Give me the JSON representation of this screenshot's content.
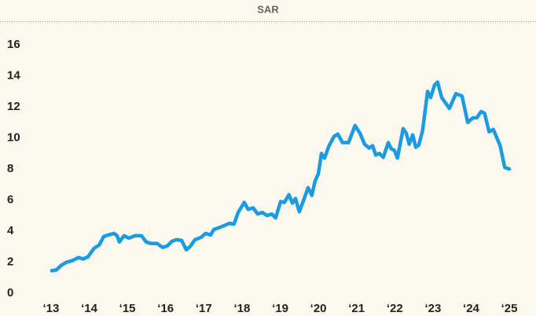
{
  "chart_data": {
    "type": "line",
    "title": "SAR",
    "x": [
      2013.02,
      2013.14,
      2013.27,
      2013.41,
      2013.56,
      2013.72,
      2013.84,
      2013.97,
      2014.13,
      2014.26,
      2014.38,
      2014.5,
      2014.65,
      2014.73,
      2014.79,
      2014.91,
      2015.04,
      2015.2,
      2015.37,
      2015.49,
      2015.62,
      2015.78,
      2015.92,
      2016.05,
      2016.17,
      2016.29,
      2016.42,
      2016.54,
      2016.64,
      2016.77,
      2016.93,
      2017.05,
      2017.18,
      2017.26,
      2017.38,
      2017.53,
      2017.67,
      2017.79,
      2017.9,
      2018.06,
      2018.16,
      2018.29,
      2018.41,
      2018.53,
      2018.66,
      2018.78,
      2018.88,
      2019.01,
      2019.11,
      2019.23,
      2019.32,
      2019.4,
      2019.5,
      2019.6,
      2019.73,
      2019.83,
      2019.91,
      2020.0,
      2020.08,
      2020.16,
      2020.28,
      2020.41,
      2020.51,
      2020.63,
      2020.79,
      2020.96,
      2021.09,
      2021.21,
      2021.33,
      2021.42,
      2021.5,
      2021.6,
      2021.7,
      2021.83,
      2021.91,
      2021.99,
      2022.07,
      2022.22,
      2022.3,
      2022.38,
      2022.47,
      2022.55,
      2022.63,
      2022.73,
      2022.86,
      2022.94,
      2023.04,
      2023.12,
      2023.23,
      2023.43,
      2023.6,
      2023.76,
      2023.91,
      2024.05,
      2024.15,
      2024.26,
      2024.35,
      2024.47,
      2024.58,
      2024.76,
      2024.88,
      2025.0
    ],
    "series": [
      {
        "name": "SAR",
        "color": "#1a9be2",
        "values": [
          1.45,
          1.5,
          1.8,
          2.0,
          2.1,
          2.3,
          2.2,
          2.35,
          2.9,
          3.1,
          3.65,
          3.75,
          3.85,
          3.7,
          3.3,
          3.7,
          3.55,
          3.7,
          3.7,
          3.3,
          3.2,
          3.2,
          2.95,
          3.05,
          3.35,
          3.45,
          3.4,
          2.8,
          3.0,
          3.45,
          3.6,
          3.85,
          3.75,
          4.1,
          4.2,
          4.35,
          4.5,
          4.45,
          5.2,
          5.85,
          5.4,
          5.5,
          5.1,
          5.2,
          5.0,
          5.1,
          4.85,
          5.9,
          5.85,
          6.35,
          5.8,
          6.1,
          5.25,
          5.9,
          6.8,
          6.3,
          7.2,
          7.7,
          9.0,
          8.7,
          9.5,
          10.1,
          10.25,
          9.7,
          9.7,
          10.8,
          10.3,
          9.6,
          9.35,
          9.5,
          8.9,
          9.0,
          8.75,
          9.7,
          9.3,
          9.2,
          8.7,
          10.6,
          10.3,
          9.6,
          10.2,
          9.4,
          9.55,
          10.5,
          13.0,
          12.6,
          13.4,
          13.6,
          12.6,
          11.9,
          12.85,
          12.7,
          11.0,
          11.3,
          11.3,
          11.7,
          11.6,
          10.4,
          10.55,
          9.5,
          8.1,
          8.0
        ]
      }
    ],
    "xlim": [
      2012.59,
      2025.41
    ],
    "xticks": [
      {
        "value": 2013,
        "label": "‘13"
      },
      {
        "value": 2014,
        "label": "‘14"
      },
      {
        "value": 2015,
        "label": "‘15"
      },
      {
        "value": 2016,
        "label": "‘16"
      },
      {
        "value": 2017,
        "label": "‘17"
      },
      {
        "value": 2018,
        "label": "‘18"
      },
      {
        "value": 2019,
        "label": "‘19"
      },
      {
        "value": 2020,
        "label": "‘20"
      },
      {
        "value": 2021,
        "label": "‘21"
      },
      {
        "value": 2022,
        "label": "‘22"
      },
      {
        "value": 2023,
        "label": "‘23"
      },
      {
        "value": 2024,
        "label": "‘24"
      },
      {
        "value": 2025,
        "label": "‘25"
      }
    ],
    "ylim": [
      0,
      16
    ],
    "yticks": [
      0,
      2,
      4,
      6,
      8,
      10,
      12,
      14,
      16
    ],
    "grid": false
  }
}
